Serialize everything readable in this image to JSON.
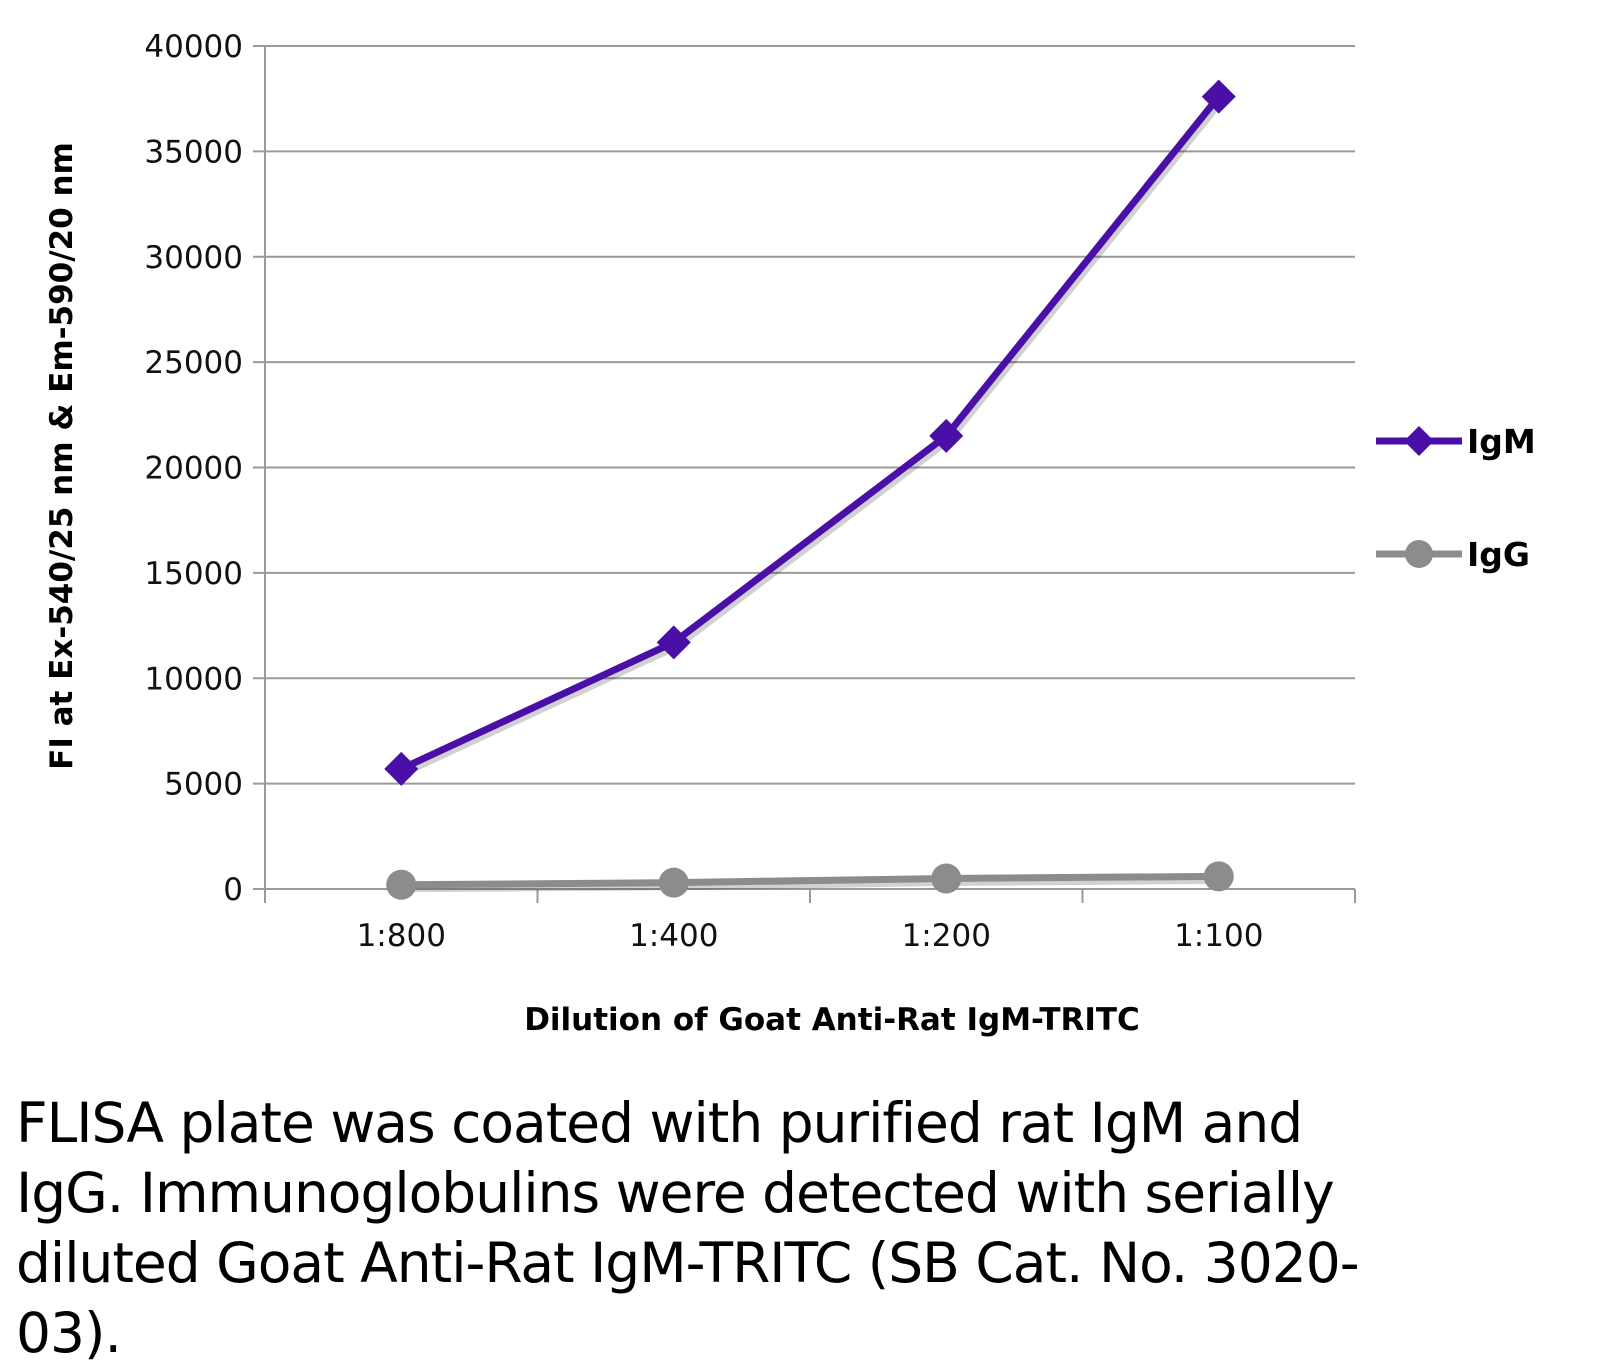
{
  "chart_data": {
    "type": "line",
    "title": "",
    "xlabel": "Dilution of Goat Anti-Rat IgM-TRITC",
    "ylabel": "FI at Ex-540/25 nm & Em-590/20 nm",
    "categories": [
      "1:800",
      "1:400",
      "1:200",
      "1:100"
    ],
    "ylim": [
      0,
      40000
    ],
    "yticks": [
      "0",
      "5000",
      "10000",
      "15000",
      "20000",
      "25000",
      "30000",
      "35000",
      "40000"
    ],
    "grid": true,
    "legend_position": "right",
    "series": [
      {
        "name": "IgM",
        "color": "#4a0fa6",
        "marker": "diamond",
        "values": [
          5700,
          11700,
          21500,
          37600
        ]
      },
      {
        "name": "IgG",
        "color": "#8c8c8c",
        "marker": "circle",
        "values": [
          200,
          300,
          500,
          600
        ]
      }
    ]
  },
  "caption": "FLISA plate was coated with purified rat IgM and IgG.  Immunoglobulins were detected with serially diluted Goat Anti-Rat IgM-TRITC (SB Cat. No. 3020-03)."
}
